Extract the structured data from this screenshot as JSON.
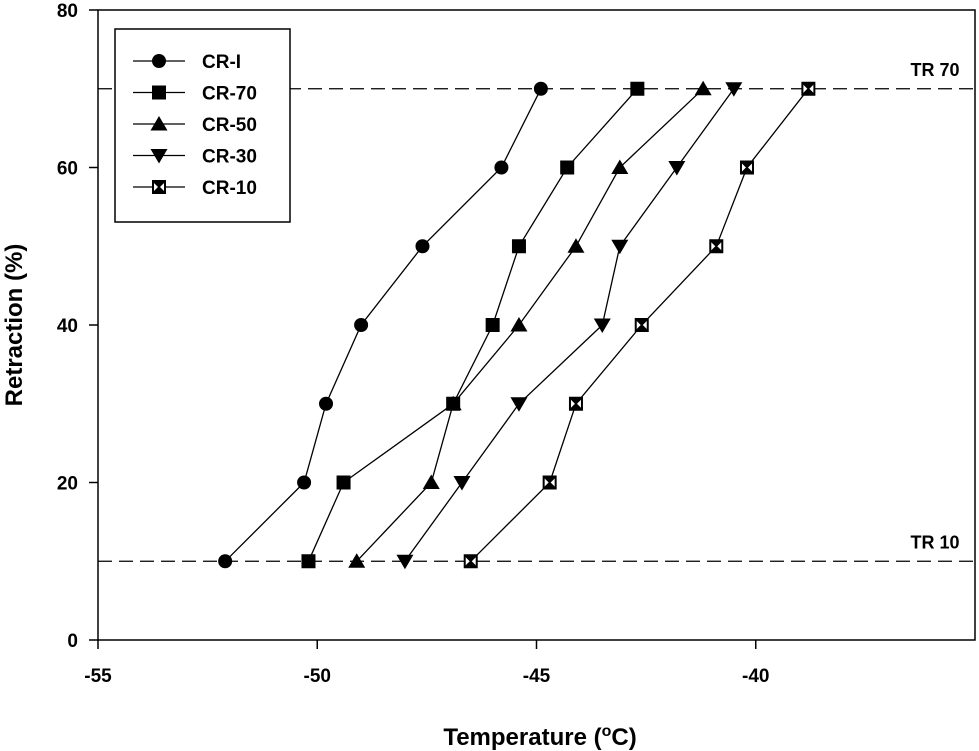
{
  "chart_data": {
    "type": "line",
    "xlabel": "Temperature (",
    "xlabel_sup": "o",
    "xlabel_unit": "C)",
    "ylabel": "Retraction (%)",
    "xlim": [
      -55,
      -35
    ],
    "ylim": [
      0,
      80
    ],
    "xticks": [
      -55,
      -50,
      -45,
      -40
    ],
    "yticks": [
      0,
      20,
      40,
      60,
      80
    ],
    "xtick_labels": [
      "-55",
      "-50",
      "-45",
      "-40"
    ],
    "ytick_labels": [
      "0",
      "20",
      "40",
      "60",
      "80"
    ],
    "grid": false,
    "legend_position": "top-left",
    "reference_lines": [
      {
        "y": 70,
        "label": "TR 70"
      },
      {
        "y": 10,
        "label": "TR 10"
      }
    ],
    "series": [
      {
        "name": "CR-I",
        "marker": "circle",
        "x": [
          -52.1,
          -50.3,
          -49.8,
          -49.0,
          -47.6,
          -45.8,
          -44.9
        ],
        "y": [
          10,
          20,
          30,
          40,
          50,
          60,
          70
        ]
      },
      {
        "name": "CR-70",
        "marker": "square",
        "x": [
          -50.2,
          -49.4,
          -46.9,
          -46.0,
          -45.4,
          -44.3,
          -42.7
        ],
        "y": [
          10,
          20,
          30,
          40,
          50,
          60,
          70
        ]
      },
      {
        "name": "CR-50",
        "marker": "triangle-up",
        "x": [
          -49.1,
          -47.4,
          -46.9,
          -45.4,
          -44.1,
          -43.1,
          -41.2
        ],
        "y": [
          10,
          20,
          30,
          40,
          50,
          60,
          70
        ]
      },
      {
        "name": "CR-30",
        "marker": "triangle-down",
        "x": [
          -48.0,
          -46.7,
          -45.4,
          -43.5,
          -43.1,
          -41.8,
          -40.5
        ],
        "y": [
          10,
          20,
          30,
          40,
          50,
          60,
          70
        ]
      },
      {
        "name": "CR-10",
        "marker": "box-x",
        "x": [
          -46.5,
          -44.7,
          -44.1,
          -42.6,
          -40.9,
          -40.2,
          -38.8
        ],
        "y": [
          10,
          20,
          30,
          40,
          50,
          60,
          70
        ]
      }
    ]
  }
}
